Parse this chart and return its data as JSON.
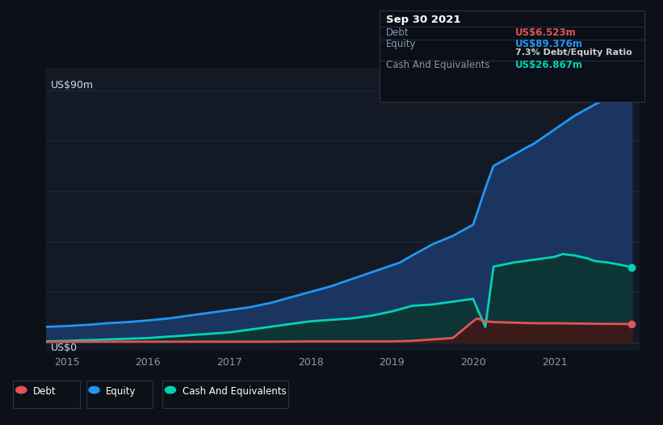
{
  "background_color": "#0d1117",
  "plot_bg_color": "#131a26",
  "title": "Sep 30 2021",
  "ylabel_top": "US$90m",
  "ylabel_bottom": "US$0",
  "xlim": [
    2014.75,
    2022.05
  ],
  "ylim": [
    -3,
    98
  ],
  "yticks": [
    0,
    90
  ],
  "xticks": [
    2015,
    2016,
    2017,
    2018,
    2019,
    2020,
    2021
  ],
  "grid_color": "#1e2d3d",
  "grid_y_values": [
    18,
    36,
    54,
    72,
    90
  ],
  "equity_color": "#2196f3",
  "equity_fill": "#1a3560",
  "cash_color": "#00d4b4",
  "cash_fill": "#0d3535",
  "debt_color": "#e05555",
  "debt_fill": "#3d1a1a",
  "equity_data": {
    "x": [
      2014.75,
      2015.0,
      2015.25,
      2015.5,
      2015.75,
      2016.0,
      2016.25,
      2016.5,
      2016.75,
      2017.0,
      2017.25,
      2017.5,
      2017.75,
      2018.0,
      2018.25,
      2018.5,
      2018.75,
      2019.0,
      2019.1,
      2019.25,
      2019.5,
      2019.75,
      2020.0,
      2020.15,
      2020.25,
      2020.5,
      2020.65,
      2020.75,
      2021.0,
      2021.25,
      2021.5,
      2021.75,
      2021.95
    ],
    "y": [
      5.5,
      5.8,
      6.2,
      6.8,
      7.2,
      7.8,
      8.5,
      9.5,
      10.5,
      11.5,
      12.5,
      14.0,
      16.0,
      18.0,
      20.0,
      22.5,
      25.0,
      27.5,
      28.5,
      31.0,
      35.0,
      38.0,
      42.0,
      55.0,
      63.0,
      67.0,
      69.5,
      71.0,
      76.0,
      81.0,
      85.0,
      88.5,
      89.376
    ]
  },
  "cash_data": {
    "x": [
      2014.75,
      2015.0,
      2015.5,
      2016.0,
      2016.5,
      2017.0,
      2017.25,
      2017.5,
      2017.75,
      2018.0,
      2018.25,
      2018.5,
      2018.75,
      2019.0,
      2019.25,
      2019.5,
      2019.75,
      2020.0,
      2020.05,
      2020.15,
      2020.25,
      2020.5,
      2020.75,
      2021.0,
      2021.1,
      2021.25,
      2021.4,
      2021.5,
      2021.65,
      2021.75,
      2021.95
    ],
    "y": [
      0.3,
      0.5,
      1.0,
      1.5,
      2.5,
      3.5,
      4.5,
      5.5,
      6.5,
      7.5,
      8.0,
      8.5,
      9.5,
      11.0,
      13.0,
      13.5,
      14.5,
      15.5,
      12.0,
      5.5,
      27.0,
      28.5,
      29.5,
      30.5,
      31.5,
      31.0,
      30.0,
      29.0,
      28.5,
      28.0,
      26.867
    ]
  },
  "debt_data": {
    "x": [
      2014.75,
      2015.0,
      2015.5,
      2016.0,
      2016.5,
      2017.0,
      2017.5,
      2018.0,
      2018.5,
      2019.0,
      2019.25,
      2019.5,
      2019.75,
      2020.0,
      2020.05,
      2020.15,
      2020.25,
      2020.5,
      2020.75,
      2021.0,
      2021.25,
      2021.5,
      2021.75,
      2021.95
    ],
    "y": [
      0.1,
      0.15,
      0.2,
      0.2,
      0.2,
      0.2,
      0.2,
      0.3,
      0.3,
      0.3,
      0.5,
      1.0,
      1.5,
      7.5,
      8.5,
      7.5,
      7.2,
      7.0,
      6.8,
      6.8,
      6.7,
      6.6,
      6.55,
      6.523
    ]
  },
  "tooltip": {
    "date": "Sep 30 2021",
    "debt_label": "Debt",
    "debt_value": "US$6.523m",
    "equity_label": "Equity",
    "equity_value": "US$89.376m",
    "ratio_text": "7.3% Debt/Equity Ratio",
    "cash_label": "Cash And Equivalents",
    "cash_value": "US$26.867m"
  },
  "legend_items": [
    {
      "label": "Debt",
      "color": "#e05555"
    },
    {
      "label": "Equity",
      "color": "#2196f3"
    },
    {
      "label": "Cash And Equivalents",
      "color": "#00d4b4"
    }
  ]
}
